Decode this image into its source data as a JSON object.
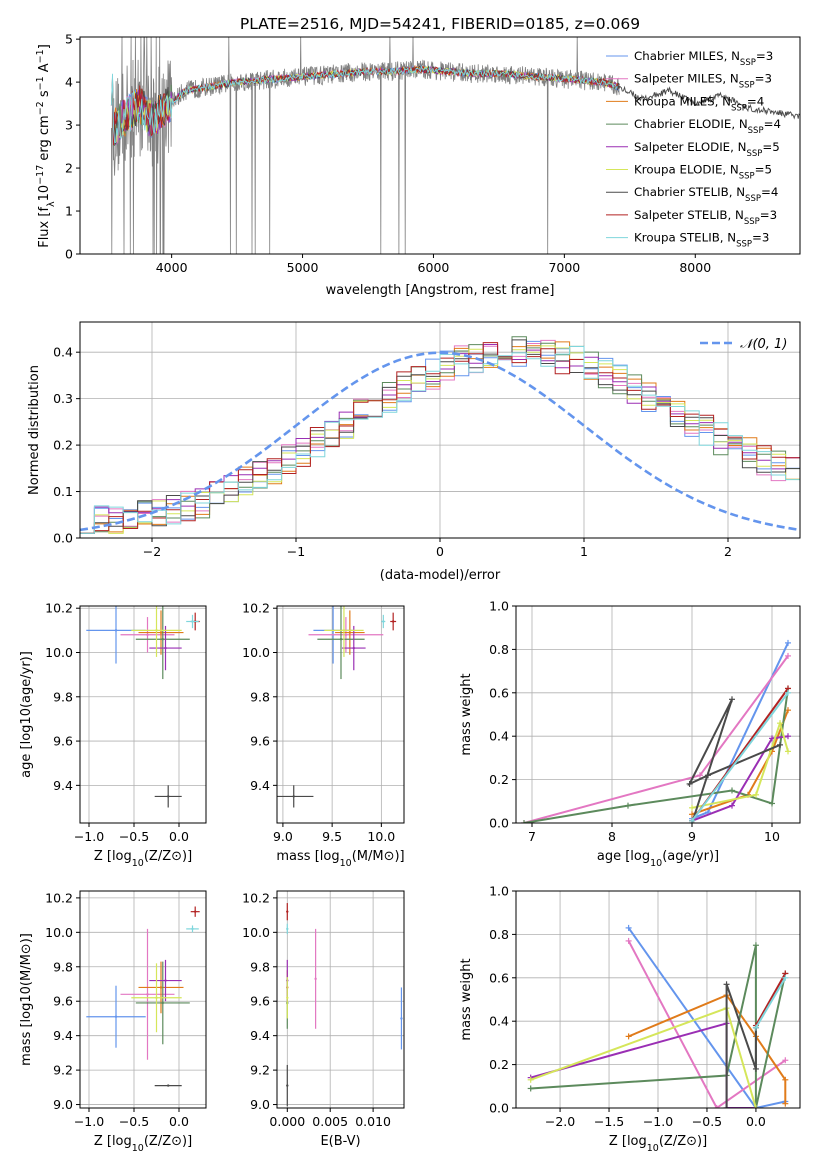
{
  "figure_title": "PLATE=2516, MJD=54241, FIBERID=0185, z=0.069",
  "colors": {
    "c0": "#6495ed",
    "c1": "#e377c2",
    "c2": "#e07b1a",
    "c3": "#5c8a5c",
    "c4": "#9a2fb4",
    "c5": "#d5e65a",
    "c6": "#4a4a4a",
    "c7": "#b22222",
    "c8": "#7fd6dc",
    "spec": "#808080"
  },
  "chart_data": [
    {
      "id": "spectrum",
      "type": "line",
      "xlabel": "wavelength [Angstrom, rest frame]",
      "ylabel": "Flux [f_λ 10^-17 erg cm^-2 s^-1 A^-1]",
      "xlim": [
        3300,
        8800
      ],
      "ylim": [
        0,
        5.05
      ],
      "xticks": [
        4000,
        5000,
        6000,
        7000,
        8000
      ],
      "yticks": [
        0,
        1,
        2,
        3,
        4,
        5
      ],
      "grid": false,
      "legend": "top-right",
      "x": [
        3550,
        3650,
        3750,
        3850,
        3950,
        4100,
        4300,
        4500,
        4700,
        4900,
        5100,
        5300,
        5500,
        5700,
        5900,
        6100,
        6300,
        6500,
        6700,
        6900,
        7100,
        7300,
        7400
      ],
      "observed": [
        2.9,
        3.2,
        3.5,
        3.1,
        3.4,
        3.8,
        3.9,
        4.0,
        4.05,
        4.1,
        4.15,
        4.2,
        4.25,
        4.25,
        4.3,
        4.25,
        4.2,
        4.2,
        4.15,
        4.1,
        4.05,
        4.0,
        3.9
      ],
      "model_extension": {
        "x": [
          7400,
          7600,
          7800,
          8000,
          8200,
          8400,
          8600,
          8800
        ],
        "values": [
          3.9,
          3.6,
          3.8,
          3.5,
          3.7,
          3.4,
          3.3,
          3.2
        ]
      },
      "series": [
        {
          "name": "Chabrier MILES, N$_{SSP}$=3",
          "label_main": "Chabrier MILES, N",
          "label_sub": "SSP",
          "label_tail": "=3",
          "color": "c0"
        },
        {
          "name": "Salpeter MILES, N$_{SSP}$=3",
          "label_main": "Salpeter MILES, N",
          "label_sub": "SSP",
          "label_tail": "=3",
          "color": "c1"
        },
        {
          "name": "Kroupa MILES, N$_{SSP}$=4",
          "label_main": "Kroupa MILES, N",
          "label_sub": "SSP",
          "label_tail": "=4",
          "color": "c2"
        },
        {
          "name": "Chabrier ELODIE, N$_{SSP}$=4",
          "label_main": "Chabrier ELODIE, N",
          "label_sub": "SSP",
          "label_tail": "=4",
          "color": "c3"
        },
        {
          "name": "Salpeter ELODIE, N$_{SSP}$=5",
          "label_main": "Salpeter ELODIE, N",
          "label_sub": "SSP",
          "label_tail": "=5",
          "color": "c4"
        },
        {
          "name": "Kroupa ELODIE, N$_{SSP}$=5",
          "label_main": "Kroupa ELODIE, N",
          "label_sub": "SSP",
          "label_tail": "=5",
          "color": "c5"
        },
        {
          "name": "Chabrier STELIB, N$_{SSP}$=4",
          "label_main": "Chabrier STELIB, N",
          "label_sub": "SSP",
          "label_tail": "=4",
          "color": "c6"
        },
        {
          "name": "Salpeter STELIB, N$_{SSP}$=3",
          "label_main": "Salpeter STELIB, N",
          "label_sub": "SSP",
          "label_tail": "=3",
          "color": "c7"
        },
        {
          "name": "Kroupa STELIB, N$_{SSP}$=3",
          "label_main": "Kroupa STELIB, N",
          "label_sub": "SSP",
          "label_tail": "=3",
          "color": "c8"
        }
      ]
    },
    {
      "id": "residuals",
      "type": "line",
      "xlabel": "(data-model)/error",
      "ylabel": "Normed distribution",
      "xlim": [
        -2.5,
        2.5
      ],
      "ylim": [
        0,
        0.465
      ],
      "xticks": [
        -2,
        -1,
        0,
        1,
        2
      ],
      "yticks": [
        0.0,
        0.1,
        0.2,
        0.3,
        0.4
      ],
      "grid": true,
      "legend": "top-right",
      "reference": {
        "name": "N(0,1)",
        "label": "𝒩(0, 1)",
        "color": "c0"
      },
      "bin_width": 0.1,
      "histogram_envelope": [
        0.035,
        0.036,
        0.038,
        0.041,
        0.046,
        0.052,
        0.06,
        0.068,
        0.078,
        0.09,
        0.104,
        0.118,
        0.134,
        0.15,
        0.168,
        0.186,
        0.206,
        0.226,
        0.246,
        0.266,
        0.286,
        0.305,
        0.323,
        0.34,
        0.355,
        0.368,
        0.379,
        0.388,
        0.394,
        0.398,
        0.4,
        0.398,
        0.394,
        0.388,
        0.379,
        0.368,
        0.355,
        0.34,
        0.323,
        0.305,
        0.286,
        0.268,
        0.25,
        0.232,
        0.214,
        0.198,
        0.182,
        0.167,
        0.153,
        0.14,
        0.128
      ]
    },
    {
      "id": "age_vs_Z",
      "type": "scatter",
      "xlabel_main": "Z [log",
      "xlabel_sub": "10",
      "xlabel_tail": "(Z/Z⊙)]",
      "ylabel": "age [log10(age/yr)]",
      "xlim": [
        -1.1,
        0.3
      ],
      "ylim": [
        9.23,
        10.21
      ],
      "xticks": [
        -1.0,
        -0.5,
        0.0
      ],
      "yticks": [
        9.4,
        9.6,
        9.8,
        10.0,
        10.2
      ],
      "grid": true,
      "points": [
        {
          "c": "c0",
          "x": -0.7,
          "xerr": 0.33,
          "y": 10.1,
          "yerr": 0.15
        },
        {
          "c": "c1",
          "x": -0.35,
          "xerr": 0.3,
          "y": 10.08,
          "yerr": 0.08
        },
        {
          "c": "c2",
          "x": -0.2,
          "xerr": 0.25,
          "y": 10.09,
          "yerr": 0.1
        },
        {
          "c": "c3",
          "x": -0.18,
          "xerr": 0.3,
          "y": 10.06,
          "yerr": 0.18
        },
        {
          "c": "c4",
          "x": -0.15,
          "xerr": 0.18,
          "y": 10.02,
          "yerr": 0.1
        },
        {
          "c": "c5",
          "x": -0.25,
          "xerr": 0.28,
          "y": 10.1,
          "yerr": 0.12
        },
        {
          "c": "c6",
          "x": -0.12,
          "xerr": 0.15,
          "y": 9.35,
          "yerr": 0.05
        },
        {
          "c": "c7",
          "x": 0.18,
          "xerr": 0.05,
          "y": 10.14,
          "yerr": 0.04
        },
        {
          "c": "c8",
          "x": 0.15,
          "xerr": 0.07,
          "y": 10.14,
          "yerr": 0.03
        }
      ]
    },
    {
      "id": "age_vs_mass",
      "type": "scatter",
      "xlabel_main": "mass [log",
      "xlabel_sub": "10",
      "xlabel_tail": "(M/M⊙)]",
      "xlim": [
        8.94,
        10.23
      ],
      "ylim": [
        9.23,
        10.21
      ],
      "xticks": [
        9.0,
        9.5,
        10.0
      ],
      "yticks": [
        9.4,
        9.6,
        9.8,
        10.0,
        10.2
      ],
      "grid": true,
      "points": [
        {
          "c": "c0",
          "x": 9.51,
          "xerr": 0.2,
          "y": 10.1,
          "yerr": 0.15
        },
        {
          "c": "c1",
          "x": 9.64,
          "xerr": 0.38,
          "y": 10.08,
          "yerr": 0.08
        },
        {
          "c": "c2",
          "x": 9.68,
          "xerr": 0.15,
          "y": 10.09,
          "yerr": 0.1
        },
        {
          "c": "c3",
          "x": 9.59,
          "xerr": 0.24,
          "y": 10.06,
          "yerr": 0.18
        },
        {
          "c": "c4",
          "x": 9.72,
          "xerr": 0.12,
          "y": 10.02,
          "yerr": 0.1
        },
        {
          "c": "c5",
          "x": 9.62,
          "xerr": 0.2,
          "y": 10.1,
          "yerr": 0.12
        },
        {
          "c": "c6",
          "x": 9.11,
          "xerr": 0.2,
          "y": 9.35,
          "yerr": 0.05
        },
        {
          "c": "c7",
          "x": 10.12,
          "xerr": 0.03,
          "y": 10.14,
          "yerr": 0.04
        },
        {
          "c": "c8",
          "x": 10.02,
          "xerr": 0.02,
          "y": 10.14,
          "yerr": 0.03
        }
      ]
    },
    {
      "id": "mass_weight_vs_age",
      "type": "line",
      "xlabel_main": "age  [log",
      "xlabel_sub": "10",
      "xlabel_tail": "(age/yr)]",
      "ylabel": "mass weight",
      "xlim": [
        6.8,
        10.35
      ],
      "ylim": [
        0,
        1.0
      ],
      "xticks": [
        7,
        8,
        9,
        10
      ],
      "yticks": [
        0.0,
        0.2,
        0.4,
        0.6,
        0.8,
        1.0
      ],
      "grid": true,
      "series": [
        {
          "c": "c0",
          "x": [
            9.0,
            9.2,
            10.2
          ],
          "y": [
            0.02,
            0.05,
            0.83
          ]
        },
        {
          "c": "c1",
          "x": [
            6.9,
            9.1,
            10.2
          ],
          "y": [
            0.0,
            0.22,
            0.77
          ]
        },
        {
          "c": "c2",
          "x": [
            9.0,
            9.7,
            10.0,
            10.2
          ],
          "y": [
            0.04,
            0.13,
            0.33,
            0.52
          ]
        },
        {
          "c": "c3",
          "x": [
            6.9,
            8.2,
            9.5,
            10.0,
            10.2
          ],
          "y": [
            0.0,
            0.08,
            0.15,
            0.09,
            0.62
          ]
        },
        {
          "c": "c4",
          "x": [
            9.0,
            9.5,
            10.0,
            10.2
          ],
          "y": [
            0.01,
            0.08,
            0.39,
            0.4
          ]
        },
        {
          "c": "c5",
          "x": [
            9.0,
            9.8,
            10.1,
            10.2
          ],
          "y": [
            0.07,
            0.13,
            0.46,
            0.33
          ]
        },
        {
          "c": "c6",
          "x": [
            9.0,
            9.5,
            8.97,
            9.2,
            10.1
          ],
          "y": [
            0.0,
            0.57,
            0.18,
            0.22,
            0.36
          ]
        },
        {
          "c": "c7",
          "x": [
            9.0,
            10.2
          ],
          "y": [
            0.01,
            0.62
          ]
        },
        {
          "c": "c8",
          "x": [
            9.0,
            10.2
          ],
          "y": [
            0.01,
            0.6
          ]
        }
      ]
    },
    {
      "id": "mass_vs_Z",
      "type": "scatter",
      "xlabel_main": "Z [log",
      "xlabel_sub": "10",
      "xlabel_tail": "(Z/Z⊙)]",
      "ylabel": "mass [log10(M/M⊙)]",
      "xlim": [
        -1.1,
        0.3
      ],
      "ylim": [
        8.98,
        10.24
      ],
      "xticks": [
        -1.0,
        -0.5,
        0.0
      ],
      "yticks": [
        9.0,
        9.2,
        9.4,
        9.6,
        9.8,
        10.0,
        10.2
      ],
      "grid": true,
      "points": [
        {
          "c": "c0",
          "x": -0.7,
          "xerr": 0.33,
          "y": 9.51,
          "yerr": 0.18
        },
        {
          "c": "c1",
          "x": -0.35,
          "xerr": 0.3,
          "y": 9.64,
          "yerr": 0.38
        },
        {
          "c": "c2",
          "x": -0.2,
          "xerr": 0.25,
          "y": 9.68,
          "yerr": 0.15
        },
        {
          "c": "c3",
          "x": -0.18,
          "xerr": 0.3,
          "y": 9.59,
          "yerr": 0.24
        },
        {
          "c": "c4",
          "x": -0.15,
          "xerr": 0.18,
          "y": 9.72,
          "yerr": 0.12
        },
        {
          "c": "c5",
          "x": -0.25,
          "xerr": 0.28,
          "y": 9.62,
          "yerr": 0.2
        },
        {
          "c": "c6",
          "x": -0.12,
          "xerr": 0.15,
          "y": 9.11,
          "yerr": 0.0
        },
        {
          "c": "c7",
          "x": 0.18,
          "xerr": 0.05,
          "y": 10.12,
          "yerr": 0.03
        },
        {
          "c": "c8",
          "x": 0.15,
          "xerr": 0.07,
          "y": 10.02,
          "yerr": 0.02
        }
      ]
    },
    {
      "id": "mass_vs_EBV",
      "type": "scatter",
      "xlabel": "E(B-V)",
      "xlim": [
        -0.0012,
        0.0136
      ],
      "ylim": [
        8.98,
        10.24
      ],
      "xticks": [
        0.0,
        0.005,
        0.01
      ],
      "yticks": [
        9.0,
        9.2,
        9.4,
        9.6,
        9.8,
        10.0,
        10.2
      ],
      "grid": true,
      "xticklabels": [
        "0.000",
        "0.005",
        "0.010"
      ],
      "points": [
        {
          "c": "c0",
          "x": 0.0133,
          "y": 9.5,
          "yerr": 0.18
        },
        {
          "c": "c1",
          "x": 0.0033,
          "y": 9.73,
          "yerr": 0.29
        },
        {
          "c": "c2",
          "x": 0.0,
          "y": 9.68,
          "yerr": 0.1
        },
        {
          "c": "c3",
          "x": 0.0,
          "y": 9.59,
          "yerr": 0.15
        },
        {
          "c": "c4",
          "x": 0.0,
          "y": 9.72,
          "yerr": 0.12
        },
        {
          "c": "c5",
          "x": 0.0,
          "y": 9.62,
          "yerr": 0.12
        },
        {
          "c": "c6",
          "x": 0.0,
          "y": 9.11,
          "yerr": 0.12
        },
        {
          "c": "c7",
          "x": 0.0,
          "y": 10.12,
          "yerr": 0.05
        },
        {
          "c": "c8",
          "x": 0.0,
          "y": 10.02,
          "yerr": 0.03
        }
      ]
    },
    {
      "id": "mass_weight_vs_Z",
      "type": "line",
      "xlabel_main": "Z [log",
      "xlabel_sub": "10",
      "xlabel_tail": "(Z/Z⊙)]",
      "ylabel": "mass weight",
      "xlim": [
        -2.45,
        0.45
      ],
      "ylim": [
        0,
        1.0
      ],
      "xticks": [
        -2.0,
        -1.5,
        -1.0,
        -0.5,
        0.0
      ],
      "yticks": [
        0.0,
        0.2,
        0.4,
        0.6,
        0.8,
        1.0
      ],
      "grid": true,
      "series": [
        {
          "c": "c0",
          "x": [
            -1.3,
            0.0,
            0.3
          ],
          "y": [
            0.83,
            0.0,
            0.03
          ]
        },
        {
          "c": "c1",
          "x": [
            -1.3,
            -0.4,
            0.3
          ],
          "y": [
            0.77,
            0.0,
            0.22
          ]
        },
        {
          "c": "c2",
          "x": [
            -1.3,
            -0.3,
            0.0,
            0.3,
            0.3
          ],
          "y": [
            0.33,
            0.52,
            0.33,
            0.13,
            0.02
          ]
        },
        {
          "c": "c3",
          "x": [
            -2.3,
            -0.3,
            0.0,
            0.0,
            0.3
          ],
          "y": [
            0.09,
            0.15,
            0.75,
            0.0,
            0.62
          ]
        },
        {
          "c": "c4",
          "x": [
            -2.3,
            -0.3,
            -0.3,
            0.0
          ],
          "y": [
            0.14,
            0.39,
            0.0,
            0.0
          ]
        },
        {
          "c": "c5",
          "x": [
            -2.3,
            -0.3,
            0.0
          ],
          "y": [
            0.13,
            0.46,
            0.0
          ]
        },
        {
          "c": "c6",
          "x": [
            -0.3,
            -0.3,
            0.0,
            0.0
          ],
          "y": [
            0.0,
            0.57,
            0.18,
            0.37
          ]
        },
        {
          "c": "c7",
          "x": [
            0.0,
            0.3
          ],
          "y": [
            0.38,
            0.62
          ]
        },
        {
          "c": "c8",
          "x": [
            0.0,
            0.3
          ],
          "y": [
            0.37,
            0.6
          ]
        }
      ]
    }
  ]
}
